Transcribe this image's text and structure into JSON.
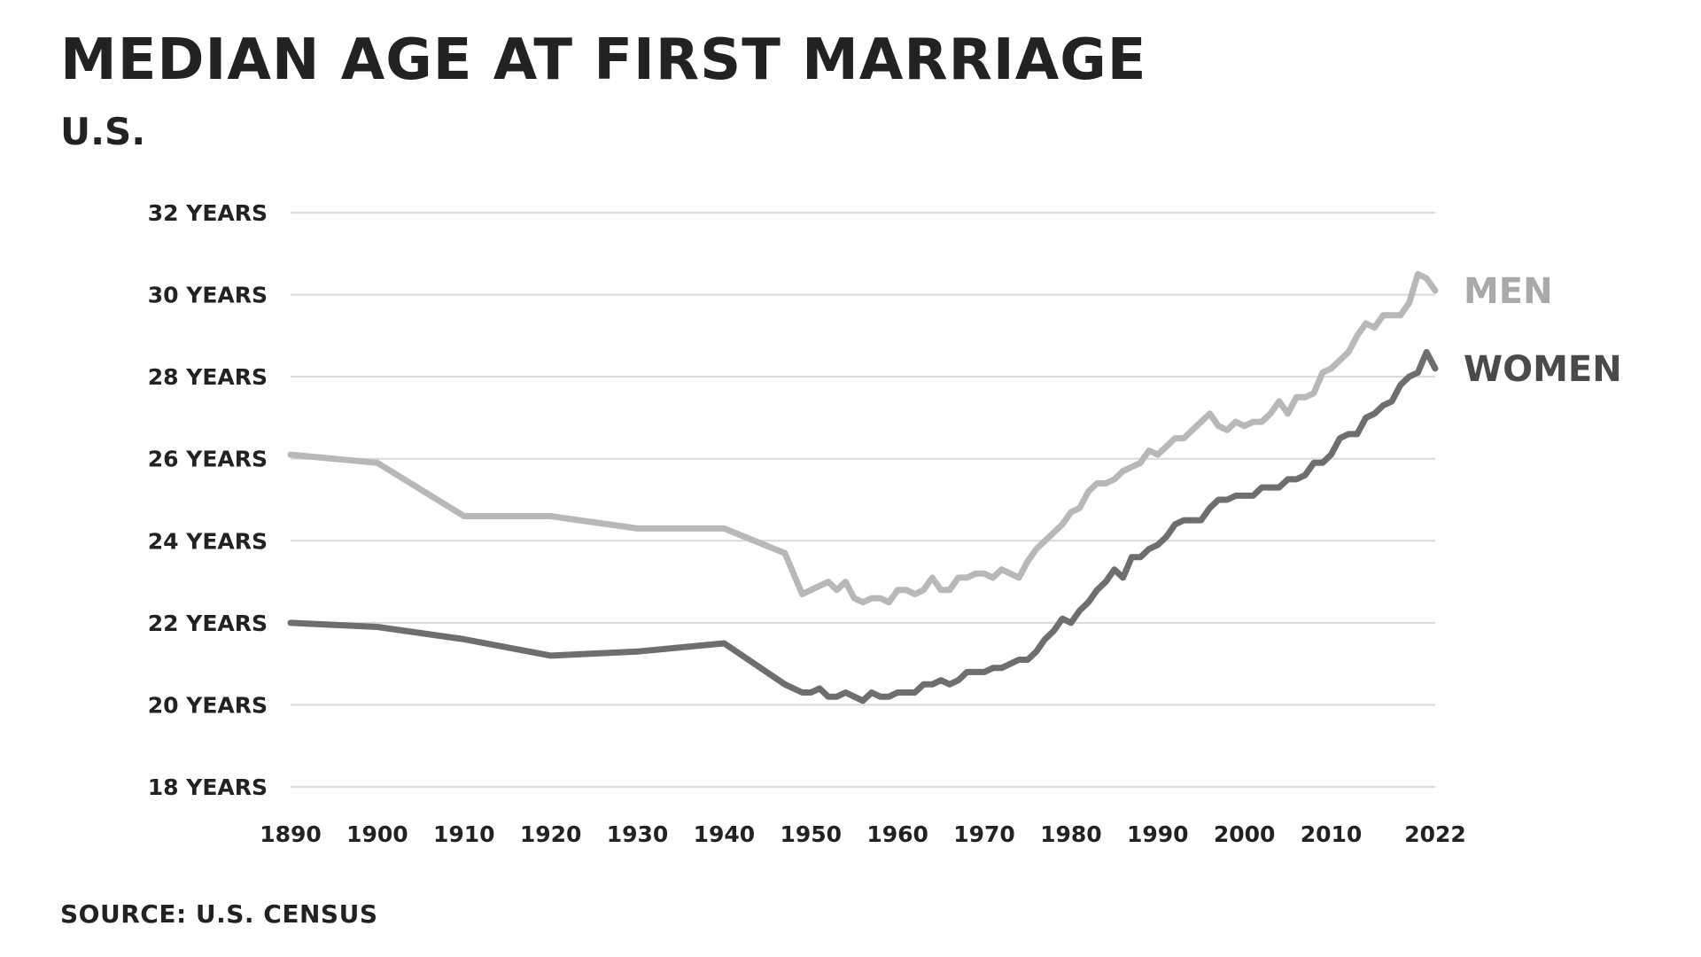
{
  "title": "MEDIAN AGE AT FIRST MARRIAGE",
  "subtitle": "U.S.",
  "source": "SOURCE: U.S. CENSUS",
  "colors": {
    "men": "#b8b8b8",
    "women": "#6e6e6e",
    "men_label": "#a9a9a9",
    "women_label": "#4a4a4a",
    "grid": "#d9d9d9",
    "text": "#222222"
  },
  "chart_data": {
    "type": "line",
    "title": "MEDIAN AGE AT FIRST MARRIAGE",
    "subtitle": "U.S.",
    "xlabel": "",
    "ylabel": "",
    "xlim": [
      1890,
      2022
    ],
    "ylim": [
      18,
      32
    ],
    "grid": true,
    "legend": "direct labels at right end of lines",
    "y_ticks": [
      {
        "value": 32,
        "label": "32 YEARS"
      },
      {
        "value": 30,
        "label": "30 YEARS"
      },
      {
        "value": 28,
        "label": "28 YEARS"
      },
      {
        "value": 26,
        "label": "26 YEARS"
      },
      {
        "value": 24,
        "label": "24 YEARS"
      },
      {
        "value": 22,
        "label": "22 YEARS"
      },
      {
        "value": 20,
        "label": "20 YEARS"
      },
      {
        "value": 18,
        "label": "18 YEARS"
      }
    ],
    "x_ticks": [
      {
        "value": 1890,
        "label": "1890"
      },
      {
        "value": 1900,
        "label": "1900"
      },
      {
        "value": 1910,
        "label": "1910"
      },
      {
        "value": 1920,
        "label": "1920"
      },
      {
        "value": 1930,
        "label": "1930"
      },
      {
        "value": 1940,
        "label": "1940"
      },
      {
        "value": 1950,
        "label": "1950"
      },
      {
        "value": 1960,
        "label": "1960"
      },
      {
        "value": 1970,
        "label": "1970"
      },
      {
        "value": 1980,
        "label": "1980"
      },
      {
        "value": 1990,
        "label": "1990"
      },
      {
        "value": 2000,
        "label": "2000"
      },
      {
        "value": 2010,
        "label": "2010"
      },
      {
        "value": 2022,
        "label": "2022"
      }
    ],
    "series": [
      {
        "name": "MEN",
        "x": [
          1890,
          1900,
          1910,
          1920,
          1930,
          1940,
          1947,
          1949,
          1950,
          1951,
          1952,
          1953,
          1954,
          1955,
          1956,
          1957,
          1958,
          1959,
          1960,
          1961,
          1962,
          1963,
          1964,
          1965,
          1966,
          1967,
          1968,
          1969,
          1970,
          1971,
          1972,
          1973,
          1974,
          1975,
          1976,
          1977,
          1978,
          1979,
          1980,
          1981,
          1982,
          1983,
          1984,
          1985,
          1986,
          1987,
          1988,
          1989,
          1990,
          1991,
          1992,
          1993,
          1994,
          1995,
          1996,
          1997,
          1998,
          1999,
          2000,
          2001,
          2002,
          2003,
          2004,
          2005,
          2006,
          2007,
          2008,
          2009,
          2010,
          2011,
          2012,
          2013,
          2014,
          2015,
          2016,
          2017,
          2018,
          2019,
          2020,
          2021,
          2022
        ],
        "values": [
          26.1,
          25.9,
          24.6,
          24.6,
          24.3,
          24.3,
          23.7,
          22.7,
          22.8,
          22.9,
          23.0,
          22.8,
          23.0,
          22.6,
          22.5,
          22.6,
          22.6,
          22.5,
          22.8,
          22.8,
          22.7,
          22.8,
          23.1,
          22.8,
          22.8,
          23.1,
          23.1,
          23.2,
          23.2,
          23.1,
          23.3,
          23.2,
          23.1,
          23.5,
          23.8,
          24.0,
          24.2,
          24.4,
          24.7,
          24.8,
          25.2,
          25.4,
          25.4,
          25.5,
          25.7,
          25.8,
          25.9,
          26.2,
          26.1,
          26.3,
          26.5,
          26.5,
          26.7,
          26.9,
          27.1,
          26.8,
          26.7,
          26.9,
          26.8,
          26.9,
          26.9,
          27.1,
          27.4,
          27.1,
          27.5,
          27.5,
          27.6,
          28.1,
          28.2,
          28.4,
          28.6,
          29.0,
          29.3,
          29.2,
          29.5,
          29.5,
          29.5,
          29.8,
          30.5,
          30.4,
          30.1
        ]
      },
      {
        "name": "WOMEN",
        "x": [
          1890,
          1900,
          1910,
          1920,
          1930,
          1940,
          1947,
          1949,
          1950,
          1951,
          1952,
          1953,
          1954,
          1955,
          1956,
          1957,
          1958,
          1959,
          1960,
          1961,
          1962,
          1963,
          1964,
          1965,
          1966,
          1967,
          1968,
          1969,
          1970,
          1971,
          1972,
          1973,
          1974,
          1975,
          1976,
          1977,
          1978,
          1979,
          1980,
          1981,
          1982,
          1983,
          1984,
          1985,
          1986,
          1987,
          1988,
          1989,
          1990,
          1991,
          1992,
          1993,
          1994,
          1995,
          1996,
          1997,
          1998,
          1999,
          2000,
          2001,
          2002,
          2003,
          2004,
          2005,
          2006,
          2007,
          2008,
          2009,
          2010,
          2011,
          2012,
          2013,
          2014,
          2015,
          2016,
          2017,
          2018,
          2019,
          2020,
          2021,
          2022
        ],
        "values": [
          22.0,
          21.9,
          21.6,
          21.2,
          21.3,
          21.5,
          20.5,
          20.3,
          20.3,
          20.4,
          20.2,
          20.2,
          20.3,
          20.2,
          20.1,
          20.3,
          20.2,
          20.2,
          20.3,
          20.3,
          20.3,
          20.5,
          20.5,
          20.6,
          20.5,
          20.6,
          20.8,
          20.8,
          20.8,
          20.9,
          20.9,
          21.0,
          21.1,
          21.1,
          21.3,
          21.6,
          21.8,
          22.1,
          22.0,
          22.3,
          22.5,
          22.8,
          23.0,
          23.3,
          23.1,
          23.6,
          23.6,
          23.8,
          23.9,
          24.1,
          24.4,
          24.5,
          24.5,
          24.5,
          24.8,
          25.0,
          25.0,
          25.1,
          25.1,
          25.1,
          25.3,
          25.3,
          25.3,
          25.5,
          25.5,
          25.6,
          25.9,
          25.9,
          26.1,
          26.5,
          26.6,
          26.6,
          27.0,
          27.1,
          27.3,
          27.4,
          27.8,
          28.0,
          28.1,
          28.6,
          28.2
        ]
      }
    ],
    "annotations": [
      {
        "text": "MEN",
        "series": "MEN"
      },
      {
        "text": "WOMEN",
        "series": "WOMEN"
      }
    ]
  }
}
